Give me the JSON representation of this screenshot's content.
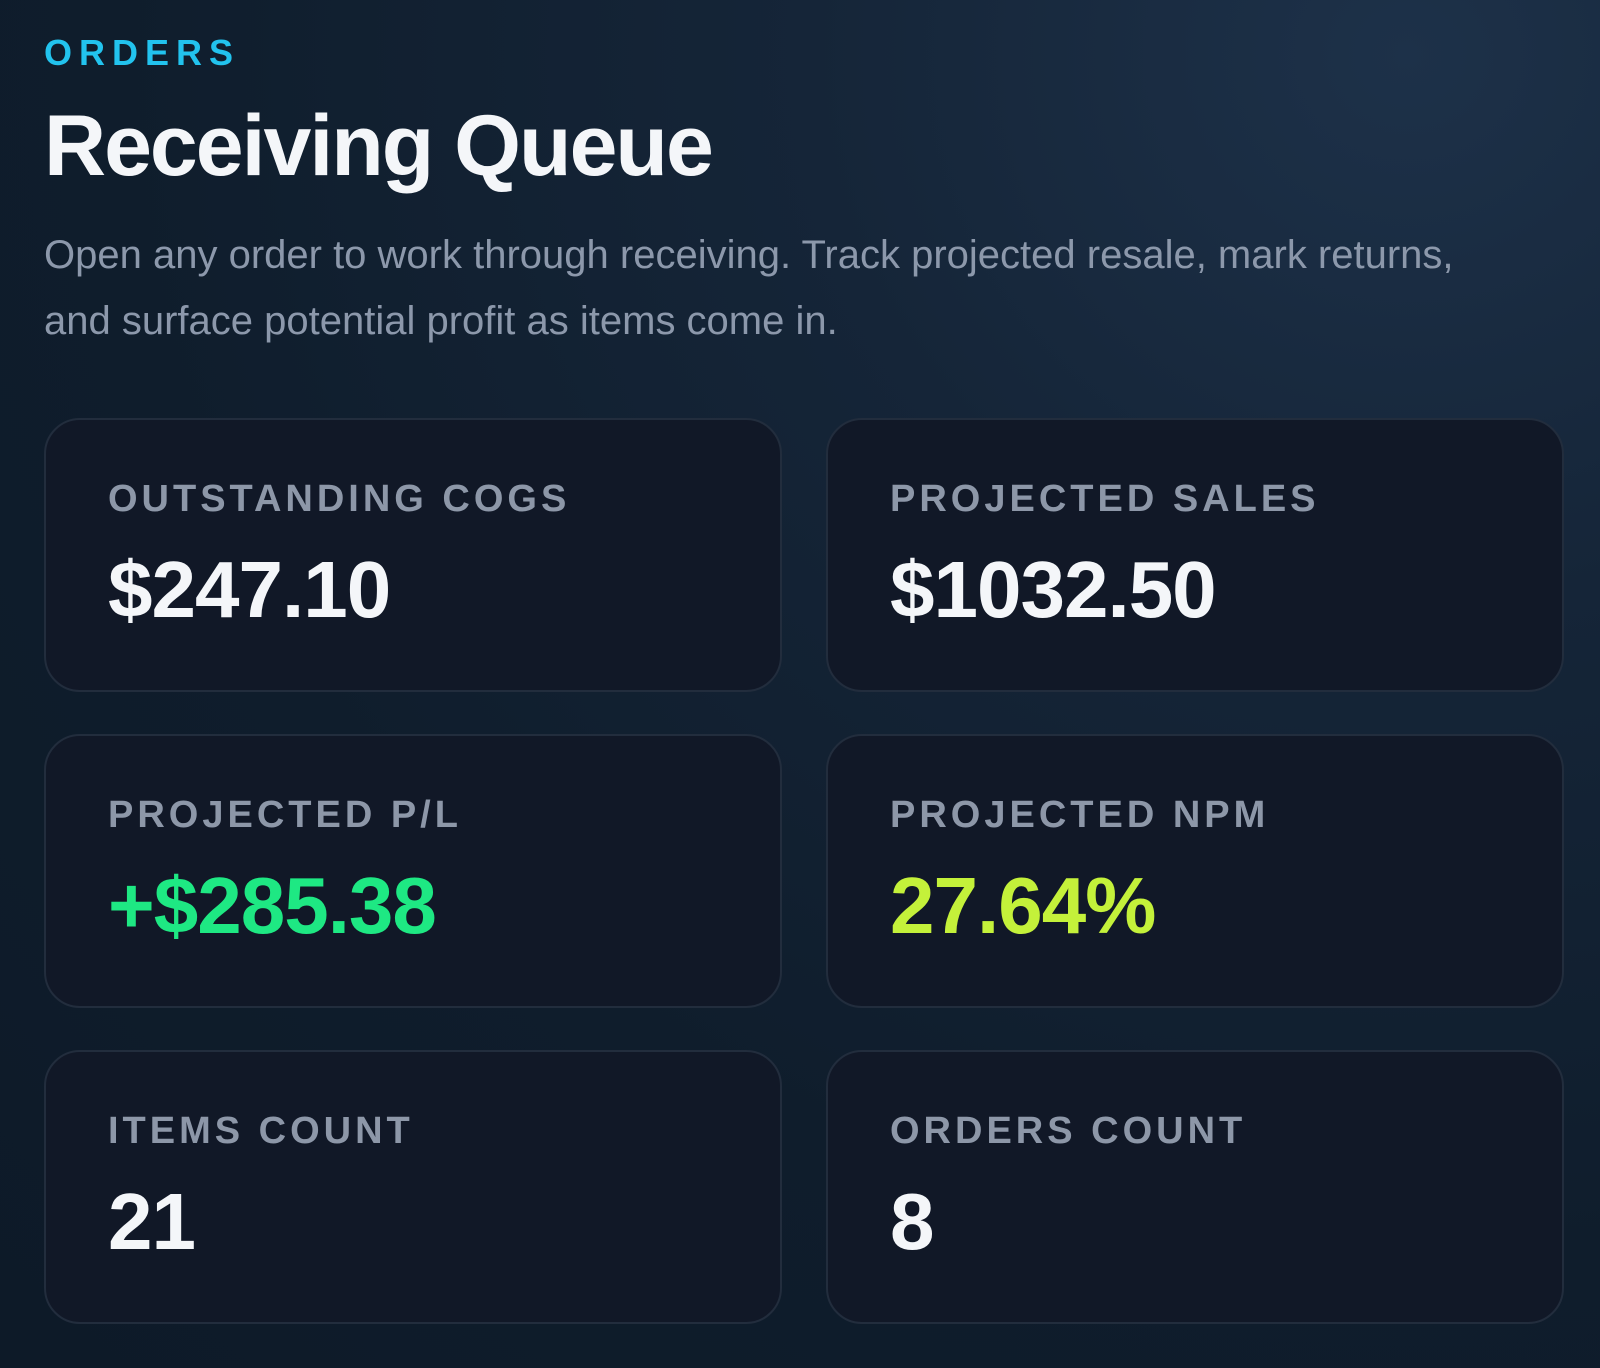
{
  "header": {
    "eyebrow": "ORDERS",
    "title": "Receiving Queue",
    "subtitle": "Open any order to work through receiving. Track projected resale, mark returns, and surface potential profit as items come in."
  },
  "metrics": {
    "outstanding_cogs": {
      "label": "OUTSTANDING COGS",
      "value": "$247.10"
    },
    "projected_sales": {
      "label": "PROJECTED SALES",
      "value": "$1032.50"
    },
    "projected_pl": {
      "label": "PROJECTED P/L",
      "value": "+$285.38",
      "color": "#1ee883"
    },
    "projected_npm": {
      "label": "PROJECTED NPM",
      "value": "27.64%",
      "color": "#c4f13a"
    },
    "items_count": {
      "label": "ITEMS COUNT",
      "value": "21"
    },
    "orders_count": {
      "label": "ORDERS COUNT",
      "value": "8"
    }
  },
  "colors": {
    "accent": "#22c3ee",
    "positive": "#1ee883",
    "margin": "#c4f13a",
    "card_bg": "#111827",
    "text_primary": "#f4f6f9",
    "text_muted": "#8d97a8"
  }
}
